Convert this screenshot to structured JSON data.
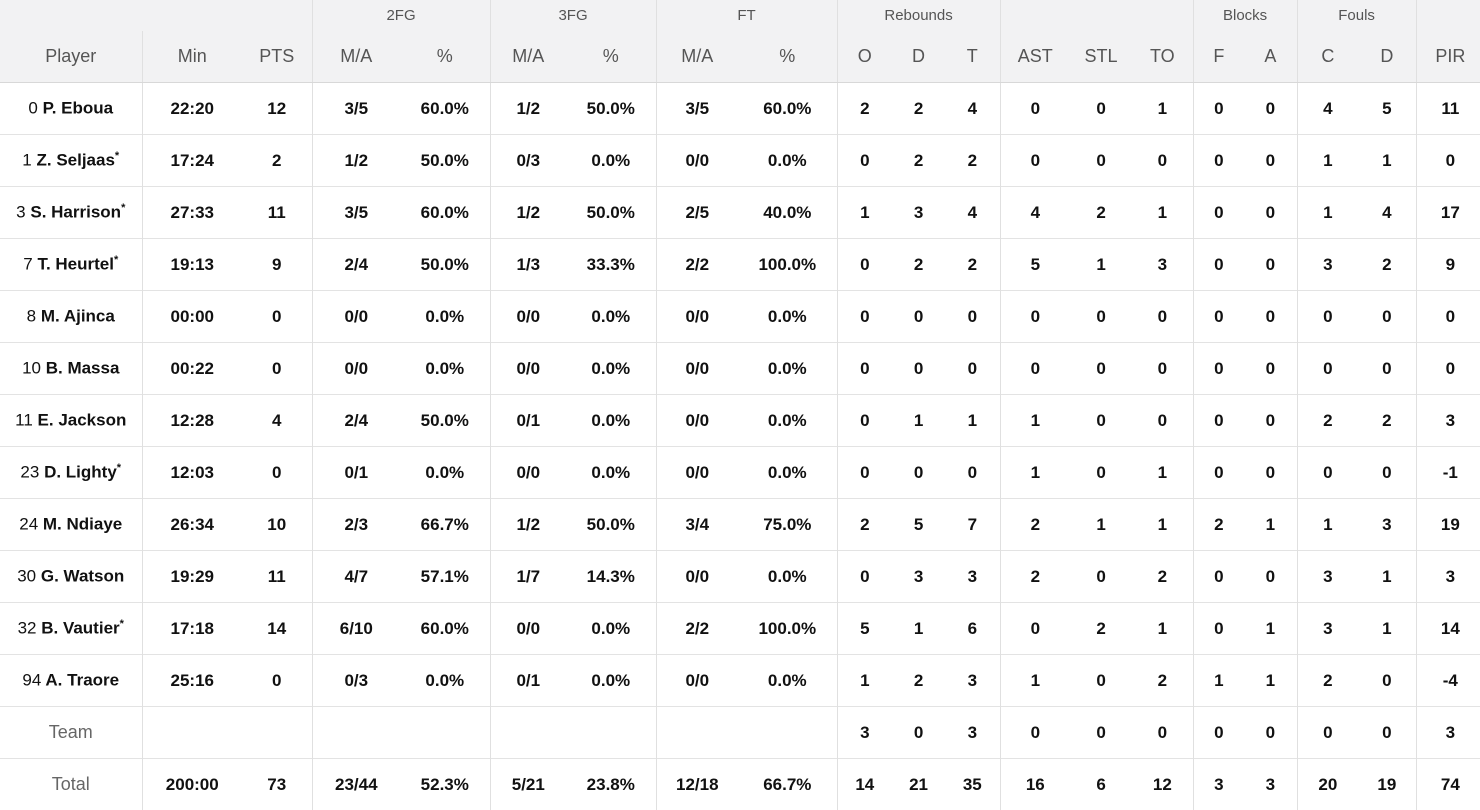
{
  "colors": {
    "header_bg": "#f2f2f3",
    "link_accent": "#5b4fd6",
    "grid": "#e3e3e3"
  },
  "groups": {
    "g2fg": "2FG",
    "g3fg": "3FG",
    "gft": "FT",
    "greb": "Rebounds",
    "gblk": "Blocks",
    "gfoul": "Fouls"
  },
  "columns": [
    "Player",
    "Min",
    "PTS",
    "M/A",
    "%",
    "M/A",
    "%",
    "M/A",
    "%",
    "O",
    "D",
    "T",
    "AST",
    "STL",
    "TO",
    "F",
    "A",
    "C",
    "D",
    "PIR"
  ],
  "players": [
    {
      "num": "0",
      "name": "P. Eboua",
      "star": "",
      "min": "22:20",
      "pts": "12",
      "fg2": "3/5",
      "fg2p": "60.0%",
      "fg3": "1/2",
      "fg3p": "50.0%",
      "ft": "3/5",
      "ftp": "60.0%",
      "o": "2",
      "d": "2",
      "t": "4",
      "ast": "0",
      "stl": "0",
      "to": "1",
      "bf": "0",
      "ba": "0",
      "fc": "4",
      "fd": "5",
      "pir": "11"
    },
    {
      "num": "1",
      "name": "Z. Seljaas",
      "star": "*",
      "min": "17:24",
      "pts": "2",
      "fg2": "1/2",
      "fg2p": "50.0%",
      "fg3": "0/3",
      "fg3p": "0.0%",
      "ft": "0/0",
      "ftp": "0.0%",
      "o": "0",
      "d": "2",
      "t": "2",
      "ast": "0",
      "stl": "0",
      "to": "0",
      "bf": "0",
      "ba": "0",
      "fc": "1",
      "fd": "1",
      "pir": "0"
    },
    {
      "num": "3",
      "name": "S. Harrison",
      "star": "*",
      "min": "27:33",
      "pts": "11",
      "fg2": "3/5",
      "fg2p": "60.0%",
      "fg3": "1/2",
      "fg3p": "50.0%",
      "ft": "2/5",
      "ftp": "40.0%",
      "o": "1",
      "d": "3",
      "t": "4",
      "ast": "4",
      "stl": "2",
      "to": "1",
      "bf": "0",
      "ba": "0",
      "fc": "1",
      "fd": "4",
      "pir": "17"
    },
    {
      "num": "7",
      "name": "T. Heurtel",
      "star": "*",
      "min": "19:13",
      "pts": "9",
      "fg2": "2/4",
      "fg2p": "50.0%",
      "fg3": "1/3",
      "fg3p": "33.3%",
      "ft": "2/2",
      "ftp": "100.0%",
      "o": "0",
      "d": "2",
      "t": "2",
      "ast": "5",
      "stl": "1",
      "to": "3",
      "bf": "0",
      "ba": "0",
      "fc": "3",
      "fd": "2",
      "pir": "9"
    },
    {
      "num": "8",
      "name": "M. Ajinca",
      "star": "",
      "min": "00:00",
      "pts": "0",
      "fg2": "0/0",
      "fg2p": "0.0%",
      "fg3": "0/0",
      "fg3p": "0.0%",
      "ft": "0/0",
      "ftp": "0.0%",
      "o": "0",
      "d": "0",
      "t": "0",
      "ast": "0",
      "stl": "0",
      "to": "0",
      "bf": "0",
      "ba": "0",
      "fc": "0",
      "fd": "0",
      "pir": "0"
    },
    {
      "num": "10",
      "name": "B. Massa",
      "star": "",
      "min": "00:22",
      "pts": "0",
      "fg2": "0/0",
      "fg2p": "0.0%",
      "fg3": "0/0",
      "fg3p": "0.0%",
      "ft": "0/0",
      "ftp": "0.0%",
      "o": "0",
      "d": "0",
      "t": "0",
      "ast": "0",
      "stl": "0",
      "to": "0",
      "bf": "0",
      "ba": "0",
      "fc": "0",
      "fd": "0",
      "pir": "0"
    },
    {
      "num": "11",
      "name": "E. Jackson",
      "star": "",
      "min": "12:28",
      "pts": "4",
      "fg2": "2/4",
      "fg2p": "50.0%",
      "fg3": "0/1",
      "fg3p": "0.0%",
      "ft": "0/0",
      "ftp": "0.0%",
      "o": "0",
      "d": "1",
      "t": "1",
      "ast": "1",
      "stl": "0",
      "to": "0",
      "bf": "0",
      "ba": "0",
      "fc": "2",
      "fd": "2",
      "pir": "3"
    },
    {
      "num": "23",
      "name": "D. Lighty",
      "star": "*",
      "min": "12:03",
      "pts": "0",
      "fg2": "0/1",
      "fg2p": "0.0%",
      "fg3": "0/0",
      "fg3p": "0.0%",
      "ft": "0/0",
      "ftp": "0.0%",
      "o": "0",
      "d": "0",
      "t": "0",
      "ast": "1",
      "stl": "0",
      "to": "1",
      "bf": "0",
      "ba": "0",
      "fc": "0",
      "fd": "0",
      "pir": "-1"
    },
    {
      "num": "24",
      "name": "M. Ndiaye",
      "star": "",
      "min": "26:34",
      "pts": "10",
      "fg2": "2/3",
      "fg2p": "66.7%",
      "fg3": "1/2",
      "fg3p": "50.0%",
      "ft": "3/4",
      "ftp": "75.0%",
      "o": "2",
      "d": "5",
      "t": "7",
      "ast": "2",
      "stl": "1",
      "to": "1",
      "bf": "2",
      "ba": "1",
      "fc": "1",
      "fd": "3",
      "pir": "19"
    },
    {
      "num": "30",
      "name": "G. Watson",
      "star": "",
      "min": "19:29",
      "pts": "11",
      "fg2": "4/7",
      "fg2p": "57.1%",
      "fg3": "1/7",
      "fg3p": "14.3%",
      "ft": "0/0",
      "ftp": "0.0%",
      "o": "0",
      "d": "3",
      "t": "3",
      "ast": "2",
      "stl": "0",
      "to": "2",
      "bf": "0",
      "ba": "0",
      "fc": "3",
      "fd": "1",
      "pir": "3"
    },
    {
      "num": "32",
      "name": "B. Vautier",
      "star": "*",
      "min": "17:18",
      "pts": "14",
      "fg2": "6/10",
      "fg2p": "60.0%",
      "fg3": "0/0",
      "fg3p": "0.0%",
      "ft": "2/2",
      "ftp": "100.0%",
      "o": "5",
      "d": "1",
      "t": "6",
      "ast": "0",
      "stl": "2",
      "to": "1",
      "bf": "0",
      "ba": "1",
      "fc": "3",
      "fd": "1",
      "pir": "14"
    },
    {
      "num": "94",
      "name": "A. Traore",
      "star": "",
      "min": "25:16",
      "pts": "0",
      "fg2": "0/3",
      "fg2p": "0.0%",
      "fg3": "0/1",
      "fg3p": "0.0%",
      "ft": "0/0",
      "ftp": "0.0%",
      "o": "1",
      "d": "2",
      "t": "3",
      "ast": "1",
      "stl": "0",
      "to": "2",
      "bf": "1",
      "ba": "1",
      "fc": "2",
      "fd": "0",
      "pir": "-4"
    }
  ],
  "team": {
    "label": "Team",
    "o": "3",
    "d": "0",
    "t": "3",
    "ast": "0",
    "stl": "0",
    "to": "0",
    "bf": "0",
    "ba": "0",
    "fc": "0",
    "fd": "0",
    "pir": "3"
  },
  "total": {
    "label": "Total",
    "min": "200:00",
    "pts": "73",
    "fg2": "23/44",
    "fg2p": "52.3%",
    "fg3": "5/21",
    "fg3p": "23.8%",
    "ft": "12/18",
    "ftp": "66.7%",
    "o": "14",
    "d": "21",
    "t": "35",
    "ast": "16",
    "stl": "6",
    "to": "12",
    "bf": "3",
    "ba": "3",
    "fc": "20",
    "fd": "19",
    "pir": "74"
  }
}
